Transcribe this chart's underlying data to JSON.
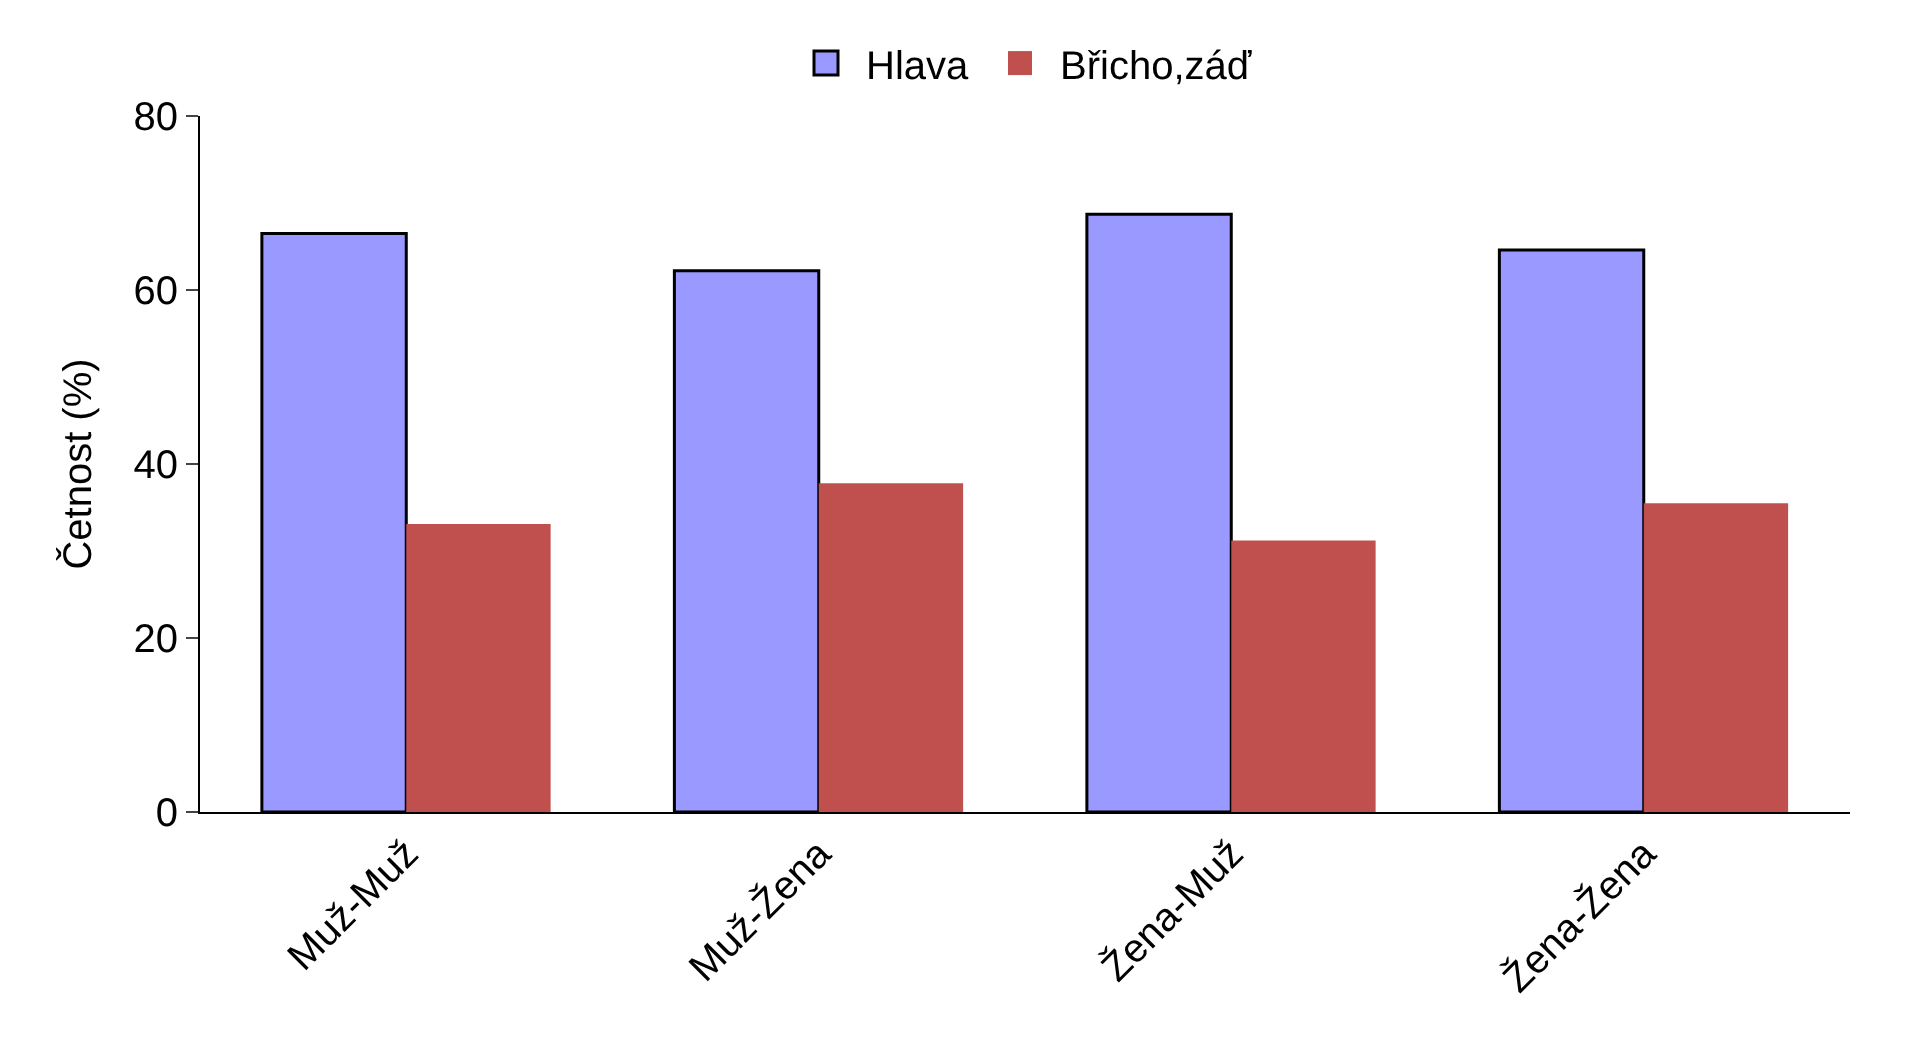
{
  "chart_data": {
    "type": "bar",
    "ylabel": "Četnost (%)",
    "categories": [
      "Muž-Muž",
      "Muž-Žena",
      "Žena-Muž",
      "Žena-Žena"
    ],
    "series": [
      {
        "name": "Hlava",
        "color": "#9999ff",
        "values": [
          66.5,
          62.2,
          68.7,
          64.6
        ]
      },
      {
        "name": "Břicho,záď",
        "color": "#c0504d",
        "values": [
          33.1,
          37.8,
          31.2,
          35.5
        ]
      }
    ],
    "ylim": [
      0,
      80
    ],
    "yticks": [
      0,
      20,
      40,
      60,
      80
    ],
    "grid": false,
    "legend": "top"
  }
}
